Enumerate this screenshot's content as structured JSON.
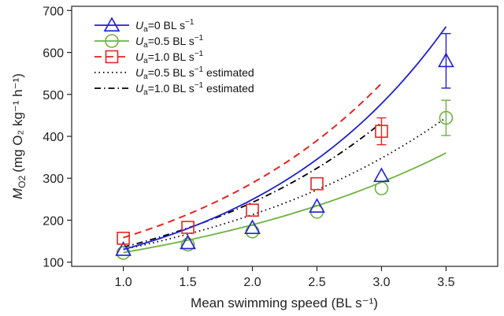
{
  "chart_data": {
    "type": "line",
    "xlabel": "Mean swimming speed (BL s⁻¹)",
    "ylabel": {
      "symbol": "M",
      "subscript": "O2",
      "units": "(mg O₂ kg⁻¹ h⁻¹)"
    },
    "xlim": [
      0.6,
      3.9
    ],
    "ylim": [
      90,
      710
    ],
    "xticks": [
      "1.0",
      "1.5",
      "2.0",
      "2.5",
      "3.0",
      "3.5"
    ],
    "xtick_values": [
      1.0,
      1.5,
      2.0,
      2.5,
      3.0,
      3.5
    ],
    "yticks": [
      "100",
      "200",
      "300",
      "400",
      "500",
      "600",
      "700"
    ],
    "ytick_values": [
      100,
      200,
      300,
      400,
      500,
      600,
      700
    ],
    "grid": false,
    "legend_position": "top-left",
    "series": [
      {
        "name": "Ua=0 BL s⁻¹",
        "label_parts": {
          "sym": "U",
          "sub": "a",
          "rest": "=0 BL s",
          "sup": "−1"
        },
        "color": "#1f1fd6",
        "marker": "triangle",
        "line": "solid",
        "x": [
          1.0,
          1.5,
          2.0,
          2.5,
          3.0,
          3.5
        ],
        "y": [
          130,
          146,
          182,
          233,
          306,
          580
        ],
        "err": [
          0,
          0,
          0,
          0,
          0,
          65
        ],
        "fit": {
          "x": [
            1.0,
            3.5
          ],
          "a": 68,
          "b": 0.65
        }
      },
      {
        "name": "Ua=0.5 BL s⁻¹",
        "label_parts": {
          "sym": "U",
          "sub": "a",
          "rest": "=0.5 BL s",
          "sup": "−1"
        },
        "color": "#6db33f",
        "marker": "circle",
        "line": "solid",
        "x": [
          1.0,
          1.5,
          2.0,
          2.5,
          3.0,
          3.5
        ],
        "y": [
          122,
          142,
          173,
          220,
          276,
          444
        ],
        "err": [
          0,
          0,
          0,
          0,
          0,
          42
        ],
        "fit": {
          "x": [
            1.0,
            3.5
          ],
          "a": 80,
          "b": 0.43
        }
      },
      {
        "name": "Ua=1.0 BL s⁻¹",
        "label_parts": {
          "sym": "U",
          "sub": "a",
          "rest": "=1.0 BL s",
          "sup": "−1"
        },
        "color": "#e52521",
        "marker": "square",
        "line": "dashed",
        "x": [
          1.0,
          1.5,
          2.0,
          2.5,
          3.0
        ],
        "y": [
          157,
          183,
          224,
          287,
          412
        ],
        "err": [
          0,
          0,
          0,
          0,
          32
        ],
        "fit": {
          "x": [
            1.0,
            3.0
          ],
          "a": 87,
          "b": 0.6
        }
      },
      {
        "name": "Ua=0.5 BL s⁻¹ estimated",
        "label_parts": {
          "sym": "U",
          "sub": "a",
          "rest": "=0.5 BL s",
          "sup": "−1",
          "after": " estimated"
        },
        "color": "#000000",
        "marker": "none",
        "line": "dotted",
        "fit": {
          "x": [
            1.0,
            3.5
          ],
          "a": 80,
          "b": 0.49
        }
      },
      {
        "name": "Ua=1.0 BL s⁻¹ estimated",
        "label_parts": {
          "sym": "U",
          "sub": "a",
          "rest": "=1.0 BL s",
          "sup": "−1",
          "after": " estimated"
        },
        "color": "#000000",
        "marker": "none",
        "line": "dashdot",
        "fit": {
          "x": [
            1.0,
            3.0
          ],
          "a": 76,
          "b": 0.58
        }
      }
    ]
  }
}
